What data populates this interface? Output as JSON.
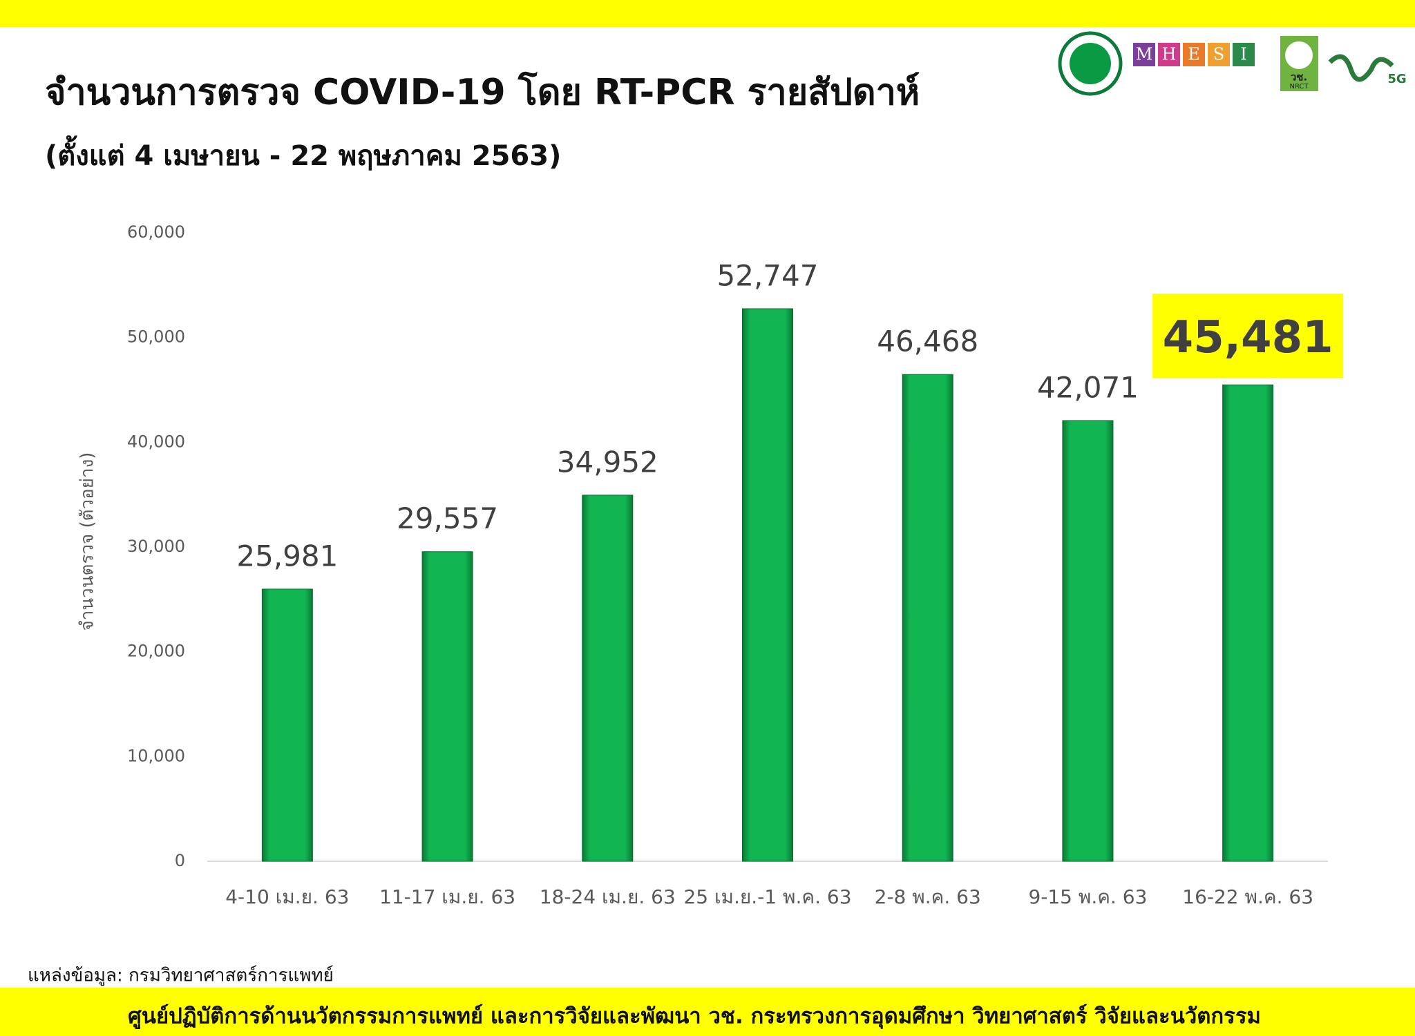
{
  "chart_data": {
    "type": "bar",
    "title": "จำนวนการตรวจ COVID-19 โดย RT-PCR รายสัปดาห์",
    "subtitle": "(ตั้งแต่ 4 เมษายน - 22 พฤษภาคม 2563)",
    "y_label": "จำนวนตรวจ (ตัวอย่าง)",
    "categories": [
      "4-10 เม.ย. 63",
      "11-17 เม.ย. 63",
      "18-24 เม.ย. 63",
      "25 เม.ย.-1 พ.ค. 63",
      "2-8 พ.ค. 63",
      "9-15 พ.ค. 63",
      "16-22 พ.ค. 63"
    ],
    "values": [
      25981,
      29557,
      34952,
      52747,
      46468,
      42071,
      45481
    ],
    "value_labels": [
      "25,981",
      "29,557",
      "34,952",
      "52,747",
      "46,468",
      "42,071",
      "45,481"
    ],
    "color": "#0fb14f",
    "ylim": [
      0,
      60000
    ],
    "yticks": [
      0,
      {
        "value": 10000,
        "label": "10,000"
      },
      {
        "value": 20000,
        "label": "20,000"
      },
      {
        "value": 30000,
        "label": "30,000"
      },
      {
        "value": 40000,
        "label": "40,000"
      },
      {
        "value": 50000,
        "label": "50,000"
      },
      {
        "value": 60000,
        "label": "60,000"
      }
    ],
    "grid": false,
    "highlight": {
      "index": 6,
      "color": "#ffff00"
    }
  },
  "logos": {
    "mhesi": [
      "M",
      "H",
      "E",
      "S",
      "I"
    ],
    "nrct": [
      "วช.",
      "NRCT"
    ],
    "fiveg": "5G"
  },
  "source": "แหล่งข้อมูล: กรมวิทยาศาสตร์การแพทย์",
  "footer": "ศูนย์ปฏิบัติการด้านนวัตกรรมการแพทย์ และการวิจัยและพัฒนา   วช.   กระทรวงการอุดมศึกษา วิทยาศาสตร์ วิจัยและนวัตกรรม"
}
